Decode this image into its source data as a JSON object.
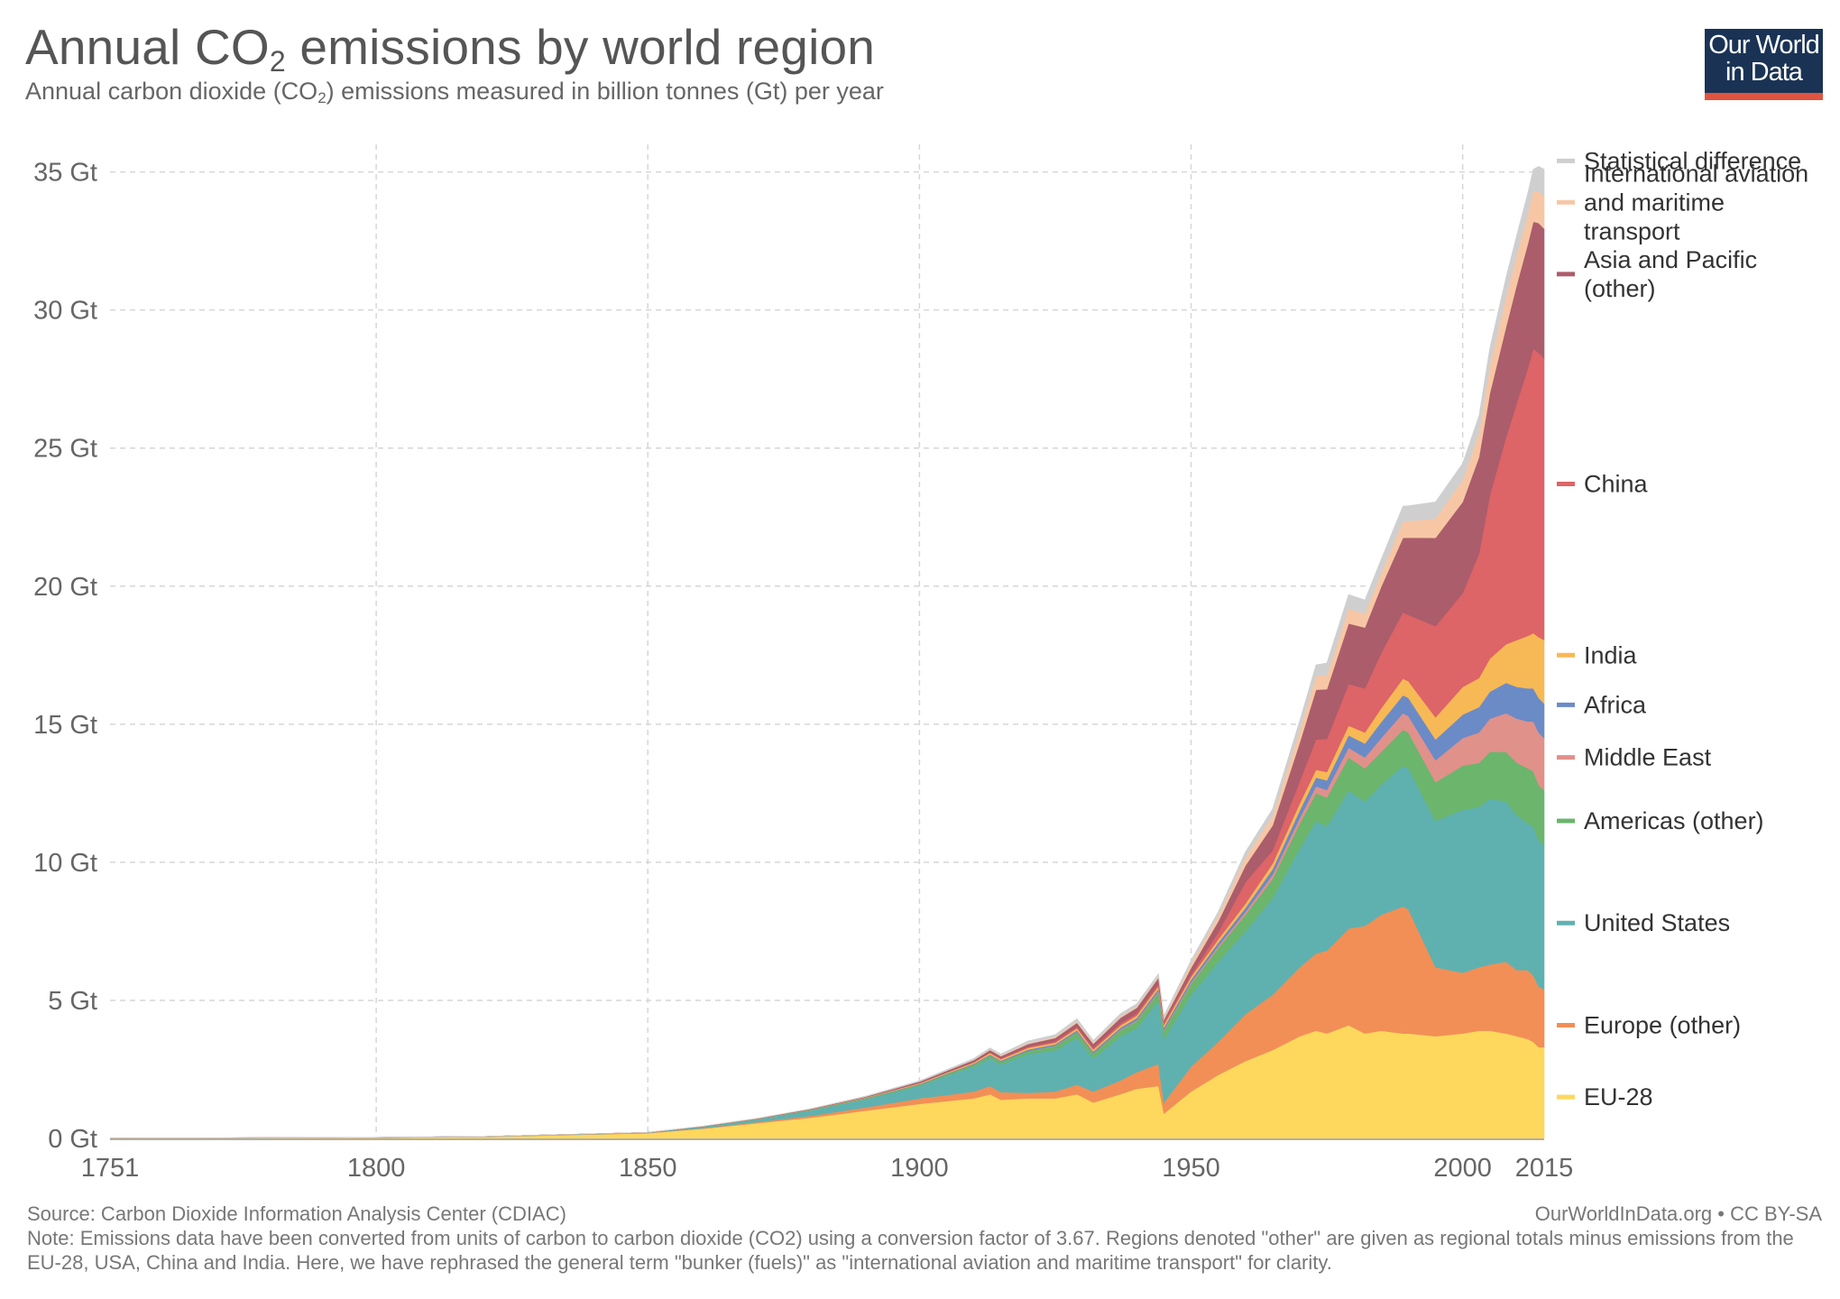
{
  "header": {
    "title_main": "Annual CO",
    "title_sub": "2",
    "title_rest": " emissions by world region",
    "subtitle_main": "Annual carbon dioxide (CO",
    "subtitle_sub": "2",
    "subtitle_rest": ") emissions measured in billion tonnes (Gt) per year"
  },
  "logo": {
    "line1": "Our World",
    "line2": "in Data"
  },
  "footer": {
    "source": "Source: Carbon Dioxide Information Analysis Center (CDIAC)",
    "credit": "OurWorldInData.org • CC BY-SA",
    "note": "Note: Emissions data have been converted from units of carbon to carbon dioxide (CO2) using a conversion factor of 3.67. Regions denoted \"other\" are given as regional totals minus emissions from the EU-28, USA, China and India. Here, we have rephrased the general term \"bunker (fuels)\" as \"international aviation and maritime transport\" for clarity."
  },
  "chart_data": {
    "type": "area",
    "stacked": true,
    "xlim": [
      1751,
      2015
    ],
    "ylim": [
      0,
      36
    ],
    "x_ticks": [
      1751,
      1800,
      1850,
      1900,
      1950,
      2000,
      2015
    ],
    "y_ticks": [
      0,
      5,
      10,
      15,
      20,
      25,
      30,
      35
    ],
    "y_tick_labels": [
      "0 Gt",
      "5 Gt",
      "10 Gt",
      "15 Gt",
      "20 Gt",
      "25 Gt",
      "30 Gt",
      "35 Gt"
    ],
    "grid": true,
    "legend_position": "right",
    "x": [
      1751,
      1800,
      1820,
      1850,
      1860,
      1870,
      1880,
      1890,
      1900,
      1905,
      1910,
      1913,
      1915,
      1920,
      1925,
      1929,
      1932,
      1937,
      1940,
      1944,
      1945,
      1950,
      1955,
      1960,
      1965,
      1970,
      1973,
      1975,
      1979,
      1982,
      1985,
      1989,
      1990,
      1995,
      2000,
      2003,
      2005,
      2008,
      2010,
      2012,
      2013,
      2014,
      2015
    ],
    "series": [
      {
        "name": "EU-28",
        "color": "#fdd85d",
        "values": [
          0.01,
          0.03,
          0.06,
          0.19,
          0.35,
          0.55,
          0.75,
          1.0,
          1.25,
          1.35,
          1.45,
          1.6,
          1.4,
          1.45,
          1.45,
          1.6,
          1.3,
          1.6,
          1.8,
          1.9,
          0.9,
          1.7,
          2.3,
          2.8,
          3.2,
          3.7,
          3.9,
          3.8,
          4.1,
          3.8,
          3.9,
          3.8,
          3.8,
          3.7,
          3.8,
          3.9,
          3.9,
          3.8,
          3.7,
          3.6,
          3.5,
          3.3,
          3.3
        ]
      },
      {
        "name": "Europe (other)",
        "color": "#f28f56",
        "values": [
          0,
          0,
          0,
          0.01,
          0.02,
          0.04,
          0.07,
          0.12,
          0.2,
          0.22,
          0.25,
          0.3,
          0.28,
          0.2,
          0.25,
          0.35,
          0.4,
          0.5,
          0.6,
          0.8,
          0.4,
          0.9,
          1.2,
          1.7,
          2.0,
          2.5,
          2.8,
          3.0,
          3.5,
          3.9,
          4.2,
          4.6,
          4.5,
          2.5,
          2.2,
          2.3,
          2.4,
          2.6,
          2.4,
          2.5,
          2.4,
          2.2,
          2.1
        ]
      },
      {
        "name": "United States",
        "color": "#5fb1b0",
        "values": [
          0,
          0.01,
          0.01,
          0.02,
          0.05,
          0.1,
          0.2,
          0.3,
          0.45,
          0.7,
          0.9,
          1.0,
          1.0,
          1.4,
          1.5,
          1.7,
          1.2,
          1.6,
          1.6,
          2.3,
          2.3,
          2.6,
          2.9,
          3.0,
          3.5,
          4.3,
          4.8,
          4.5,
          5.0,
          4.5,
          4.7,
          5.1,
          5.1,
          5.3,
          5.9,
          5.8,
          6.0,
          5.8,
          5.6,
          5.3,
          5.4,
          5.3,
          5.2
        ]
      },
      {
        "name": "Americas (other)",
        "color": "#6bb56d",
        "values": [
          0,
          0,
          0,
          0,
          0.01,
          0.01,
          0.02,
          0.03,
          0.05,
          0.06,
          0.08,
          0.1,
          0.1,
          0.12,
          0.15,
          0.2,
          0.18,
          0.22,
          0.25,
          0.3,
          0.3,
          0.4,
          0.5,
          0.6,
          0.7,
          0.9,
          1.0,
          1.05,
          1.2,
          1.2,
          1.2,
          1.3,
          1.3,
          1.4,
          1.6,
          1.6,
          1.7,
          1.8,
          1.9,
          2.0,
          2.0,
          2.0,
          2.0
        ]
      },
      {
        "name": "Middle East",
        "color": "#e0918a",
        "values": [
          0,
          0,
          0,
          0,
          0,
          0,
          0,
          0,
          0,
          0,
          0,
          0,
          0,
          0,
          0.01,
          0.01,
          0.01,
          0.02,
          0.03,
          0.03,
          0.03,
          0.05,
          0.07,
          0.1,
          0.15,
          0.2,
          0.25,
          0.27,
          0.35,
          0.4,
          0.5,
          0.6,
          0.6,
          0.8,
          1.0,
          1.1,
          1.2,
          1.4,
          1.6,
          1.7,
          1.8,
          1.9,
          1.9
        ]
      },
      {
        "name": "Africa",
        "color": "#6b8bc7",
        "values": [
          0,
          0,
          0,
          0,
          0,
          0,
          0,
          0.01,
          0.02,
          0.02,
          0.03,
          0.04,
          0.04,
          0.05,
          0.05,
          0.06,
          0.06,
          0.07,
          0.08,
          0.09,
          0.09,
          0.1,
          0.12,
          0.15,
          0.2,
          0.28,
          0.32,
          0.35,
          0.45,
          0.5,
          0.58,
          0.65,
          0.66,
          0.75,
          0.85,
          0.92,
          0.98,
          1.1,
          1.15,
          1.2,
          1.2,
          1.25,
          1.25
        ]
      },
      {
        "name": "India",
        "color": "#f7b955",
        "values": [
          0,
          0,
          0,
          0,
          0,
          0.01,
          0.01,
          0.02,
          0.03,
          0.03,
          0.04,
          0.05,
          0.05,
          0.06,
          0.06,
          0.07,
          0.07,
          0.08,
          0.09,
          0.09,
          0.09,
          0.1,
          0.12,
          0.15,
          0.2,
          0.25,
          0.28,
          0.3,
          0.35,
          0.4,
          0.5,
          0.6,
          0.6,
          0.8,
          1.0,
          1.05,
          1.2,
          1.4,
          1.7,
          1.9,
          2.0,
          2.2,
          2.3
        ]
      },
      {
        "name": "China",
        "color": "#dd6467",
        "values": [
          0,
          0,
          0,
          0,
          0,
          0,
          0,
          0,
          0.01,
          0.01,
          0.02,
          0.03,
          0.03,
          0.04,
          0.05,
          0.05,
          0.06,
          0.08,
          0.08,
          0.09,
          0.09,
          0.08,
          0.25,
          0.78,
          0.48,
          0.8,
          1.1,
          1.2,
          1.5,
          1.6,
          2.0,
          2.4,
          2.4,
          3.3,
          3.4,
          4.5,
          5.9,
          7.5,
          8.6,
          9.7,
          10.3,
          10.3,
          10.2
        ]
      },
      {
        "name": "Asia and Pacific (other)",
        "color": "#ab5d6b",
        "values": [
          0,
          0,
          0,
          0,
          0.01,
          0.01,
          0.02,
          0.03,
          0.05,
          0.06,
          0.07,
          0.08,
          0.08,
          0.1,
          0.12,
          0.15,
          0.15,
          0.2,
          0.2,
          0.22,
          0.1,
          0.25,
          0.4,
          0.6,
          0.9,
          1.4,
          1.8,
          1.8,
          2.2,
          2.2,
          2.4,
          2.7,
          2.8,
          3.2,
          3.3,
          3.5,
          3.7,
          4.0,
          4.3,
          4.5,
          4.6,
          4.7,
          4.7
        ]
      },
      {
        "name": "International aviation and maritime transport",
        "color": "#f7c7a5",
        "values": [
          0,
          0,
          0,
          0,
          0,
          0,
          0,
          0,
          0,
          0,
          0.01,
          0.02,
          0.02,
          0.03,
          0.04,
          0.05,
          0.04,
          0.05,
          0.05,
          0.05,
          0.05,
          0.15,
          0.2,
          0.3,
          0.35,
          0.45,
          0.5,
          0.5,
          0.55,
          0.5,
          0.5,
          0.6,
          0.6,
          0.7,
          0.8,
          0.9,
          1.0,
          1.1,
          1.1,
          1.1,
          1.1,
          1.15,
          1.15
        ]
      },
      {
        "name": "Statistical difference",
        "color": "#cfcfcf",
        "values": [
          0,
          0,
          0,
          0,
          0,
          0,
          0.01,
          0.02,
          0.03,
          0.04,
          0.05,
          0.06,
          0.06,
          0.08,
          0.08,
          0.1,
          0.08,
          0.1,
          0.1,
          0.1,
          0.1,
          0.12,
          0.15,
          0.2,
          0.25,
          0.35,
          0.4,
          0.45,
          0.5,
          0.5,
          0.5,
          0.55,
          0.55,
          0.6,
          0.6,
          0.6,
          0.65,
          0.7,
          0.7,
          0.75,
          0.8,
          0.9,
          1.0
        ]
      }
    ],
    "legend": [
      {
        "lines": [
          "Statistical difference"
        ],
        "color": "#cfcfcf",
        "marker_value": 35.4
      },
      {
        "lines": [
          "International aviation",
          "and maritime",
          "transport"
        ],
        "color": "#f7c7a5",
        "marker_value": 33.9
      },
      {
        "lines": [
          "Asia and Pacific",
          "(other)"
        ],
        "color": "#ab5d6b",
        "marker_value": 31.3
      },
      {
        "lines": [
          "China"
        ],
        "color": "#dd6467",
        "marker_value": 23.7
      },
      {
        "lines": [
          "India"
        ],
        "color": "#f7b955",
        "marker_value": 17.5
      },
      {
        "lines": [
          "Africa"
        ],
        "color": "#6b8bc7",
        "marker_value": 15.7
      },
      {
        "lines": [
          "Middle East"
        ],
        "color": "#e0918a",
        "marker_value": 13.8
      },
      {
        "lines": [
          "Americas (other)"
        ],
        "color": "#6bb56d",
        "marker_value": 11.5
      },
      {
        "lines": [
          "United States"
        ],
        "color": "#5fb1b0",
        "marker_value": 7.8
      },
      {
        "lines": [
          "Europe (other)"
        ],
        "color": "#f28f56",
        "marker_value": 4.1
      },
      {
        "lines": [
          "EU-28"
        ],
        "color": "#fdd85d",
        "marker_value": 1.5
      }
    ]
  }
}
